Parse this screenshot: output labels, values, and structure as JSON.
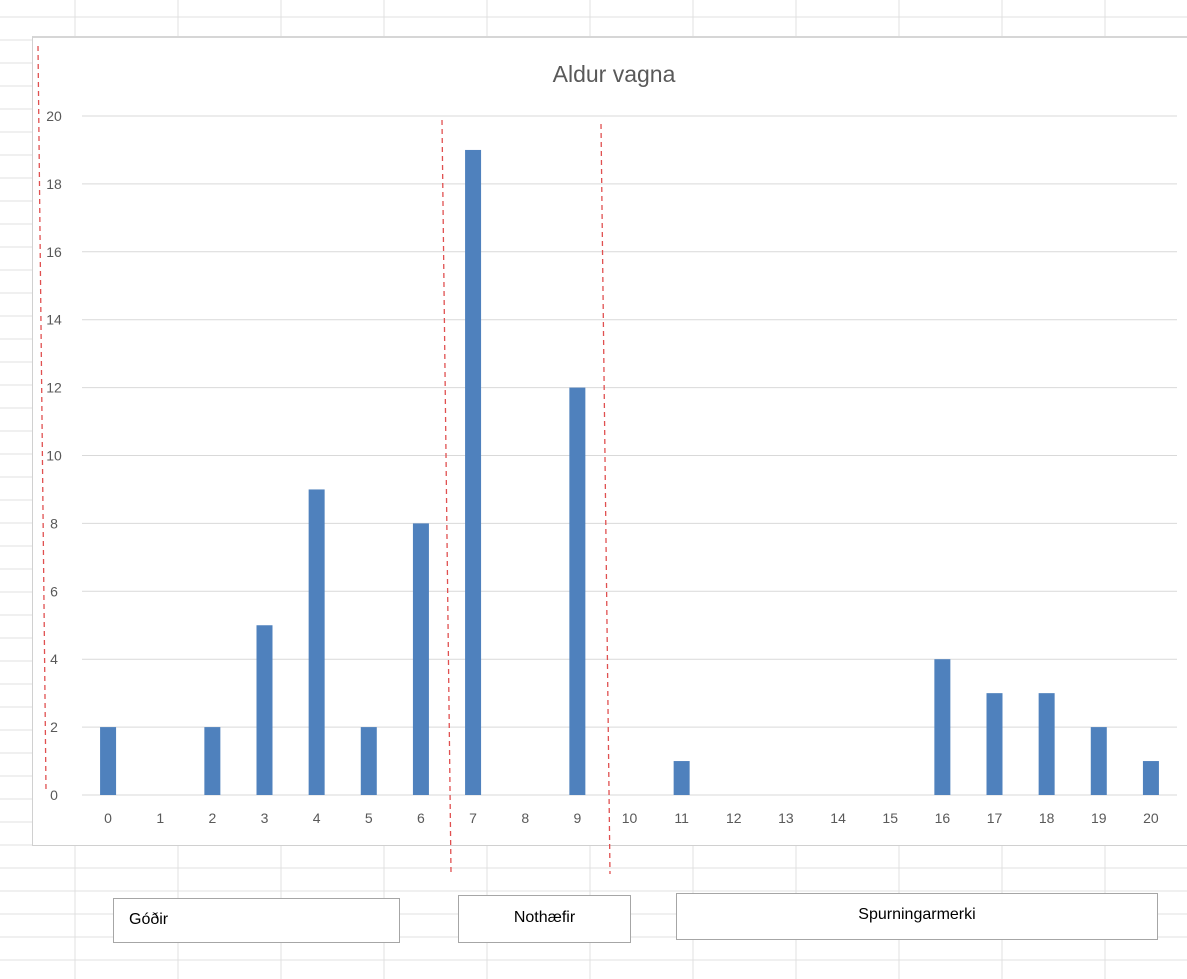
{
  "chart_data": {
    "type": "bar",
    "title": "Aldur vagna",
    "xlabel": "",
    "ylabel": "",
    "categories": [
      "0",
      "1",
      "2",
      "3",
      "4",
      "5",
      "6",
      "7",
      "8",
      "9",
      "10",
      "11",
      "12",
      "13",
      "14",
      "15",
      "16",
      "17",
      "18",
      "19",
      "20"
    ],
    "values": [
      2,
      0,
      2,
      5,
      9,
      2,
      8,
      19,
      0,
      12,
      0,
      1,
      0,
      0,
      0,
      0,
      4,
      3,
      3,
      2,
      1
    ],
    "ylim": [
      0,
      20
    ],
    "yticks": [
      "0",
      "2",
      "4",
      "6",
      "8",
      "10",
      "12",
      "14",
      "16",
      "18",
      "20"
    ],
    "grid": true,
    "legend": "none",
    "bar_color": "#4f81bd",
    "divider_color": "#e05050",
    "annotations": [
      {
        "label": "Góðir"
      },
      {
        "label": "Nothæfir"
      },
      {
        "label": "Spurningarmerki"
      }
    ]
  }
}
